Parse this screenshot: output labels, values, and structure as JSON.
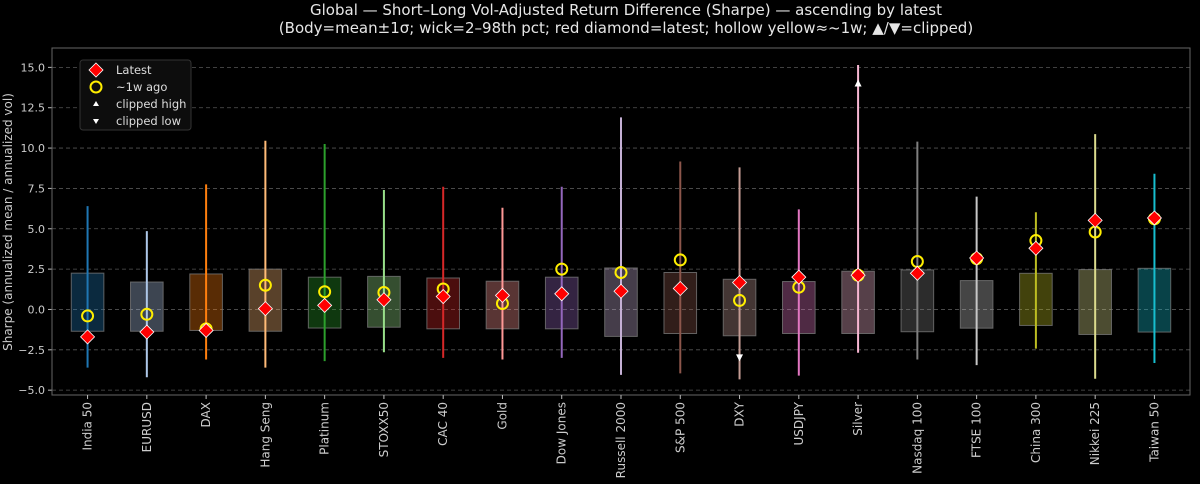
{
  "chart_data": {
    "type": "box",
    "title": "Global — Short–Long Vol-Adjusted Return Difference (Sharpe) — ascending by latest",
    "subtitle": "(Body=mean±1σ; wick=2–98th pct; red diamond=latest; hollow yellow≈~1w; ▲/▼=clipped)",
    "xlabel": "",
    "ylabel": "Sharpe (annualized mean / annualized vol)",
    "ylim": [
      -5.3,
      16.2
    ],
    "yticks": [
      -5.0,
      -2.5,
      0.0,
      2.5,
      5.0,
      7.5,
      10.0,
      12.5,
      15.0
    ],
    "ytick_labels": [
      "−5.0",
      "−2.5",
      "0.0",
      "2.5",
      "5.0",
      "7.5",
      "10.0",
      "12.5",
      "15.0"
    ],
    "grid": "horizontal dashed",
    "legend_position": "top-left",
    "legend": [
      {
        "label": "Latest",
        "marker": "red-diamond"
      },
      {
        "label": "~1w ago",
        "marker": "hollow-yellow-circle"
      },
      {
        "label": "clipped high",
        "marker": "white-triangle-up"
      },
      {
        "label": "clipped low",
        "marker": "white-triangle-down"
      }
    ],
    "categories": [
      "India 50",
      "EURUSD",
      "DAX",
      "Hang Seng",
      "Platinum",
      "STOXX50",
      "CAC 40",
      "Gold",
      "Dow Jones",
      "Russell 2000",
      "S&P 500",
      "DXY",
      "USDJPY",
      "Silver",
      "Nasdaq 100",
      "FTSE 100",
      "China 300",
      "Nikkei 225",
      "Taiwan 50"
    ],
    "colors": [
      "#1f77b4",
      "#aec7e8",
      "#ff7f0e",
      "#ffbb78",
      "#2ca02c",
      "#98df8a",
      "#d62728",
      "#ff9896",
      "#9467bd",
      "#c5b0d5",
      "#8c564b",
      "#c49c94",
      "#e377c2",
      "#f7b6d2",
      "#7f7f7f",
      "#c7c7c7",
      "#bcbd22",
      "#dbdb8d",
      "#17becf"
    ],
    "body_low": [
      -1.35,
      -1.35,
      -1.3,
      -1.35,
      -1.15,
      -1.1,
      -1.2,
      -1.2,
      -1.2,
      -1.67,
      -1.49,
      -1.63,
      -1.49,
      -1.49,
      -1.38,
      -1.16,
      -0.99,
      -1.55,
      -1.4
    ],
    "body_high": [
      2.25,
      1.7,
      2.2,
      2.5,
      2.0,
      2.05,
      1.95,
      1.75,
      2.0,
      2.57,
      2.29,
      1.87,
      1.73,
      2.37,
      2.45,
      1.79,
      2.24,
      2.47,
      2.55
    ],
    "wick_low": [
      -3.6,
      -4.2,
      -3.1,
      -3.6,
      -3.2,
      -2.65,
      -3.0,
      -3.1,
      -3.0,
      -4.05,
      -3.96,
      -4.33,
      -4.1,
      -2.68,
      -3.1,
      -3.45,
      -2.43,
      -4.29,
      -3.32
    ],
    "wick_high": [
      6.4,
      4.85,
      7.75,
      10.45,
      10.25,
      7.4,
      7.6,
      6.3,
      7.6,
      11.9,
      9.17,
      8.8,
      6.2,
      15.15,
      10.4,
      6.99,
      6.02,
      10.86,
      8.41
    ],
    "latest": [
      -1.7,
      -1.4,
      -1.3,
      0.05,
      0.25,
      0.6,
      0.8,
      0.87,
      0.97,
      1.13,
      1.3,
      1.67,
      2.0,
      2.12,
      2.24,
      3.19,
      3.79,
      5.52,
      5.67
    ],
    "week_ago": [
      -0.4,
      -0.3,
      -1.2,
      1.5,
      1.1,
      1.05,
      1.27,
      0.37,
      2.5,
      2.29,
      3.07,
      0.56,
      1.38,
      2.12,
      2.97,
      3.15,
      4.27,
      4.8,
      5.62
    ],
    "clipped_high": [
      {
        "category": "Silver",
        "value": 14.0
      }
    ],
    "clipped_low": [
      {
        "category": "DXY",
        "value": -2.97
      }
    ]
  }
}
